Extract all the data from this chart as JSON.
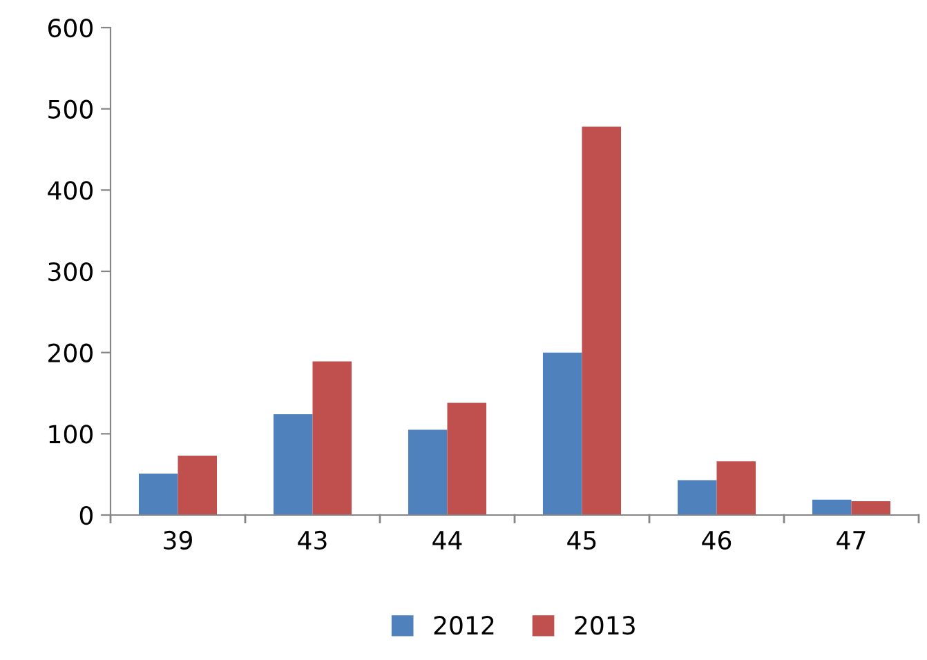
{
  "chart_data": {
    "type": "bar",
    "categories": [
      "39",
      "43",
      "44",
      "45",
      "46",
      "47"
    ],
    "series": [
      {
        "name": "2012",
        "color": "#4f81bd",
        "values": [
          51,
          124,
          105,
          200,
          43,
          19
        ]
      },
      {
        "name": "2013",
        "color": "#c0504d",
        "values": [
          73,
          189,
          138,
          478,
          66,
          17
        ]
      }
    ],
    "ylim": [
      0,
      600
    ],
    "yticks": [
      0,
      100,
      200,
      300,
      400,
      500,
      600
    ],
    "grid": false,
    "legend": "bottom"
  }
}
